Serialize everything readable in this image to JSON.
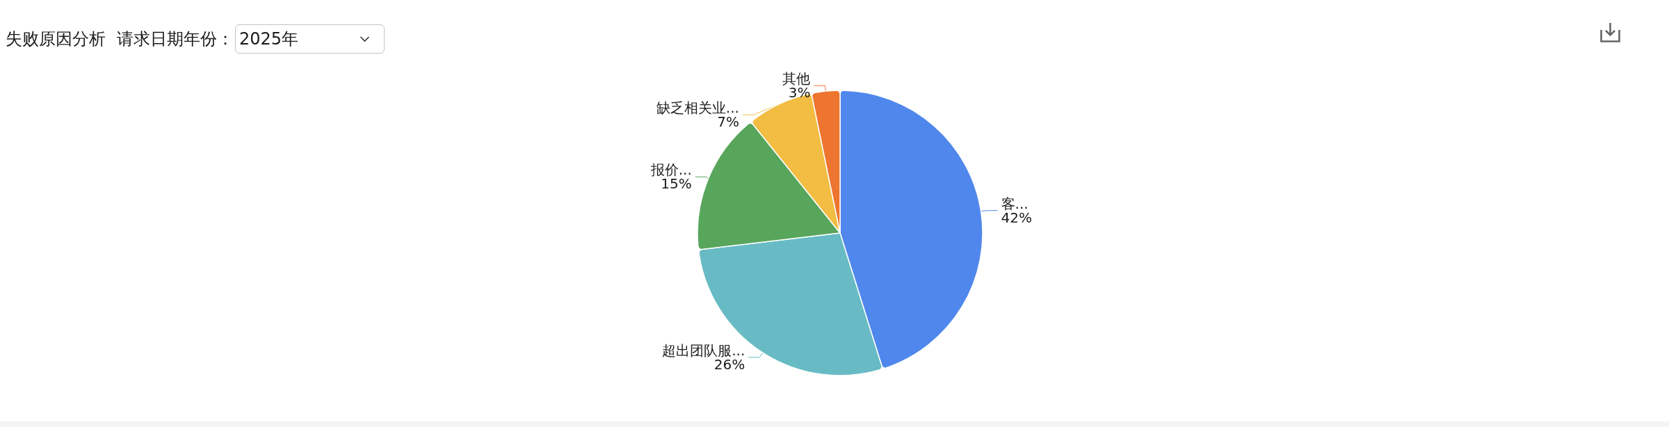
{
  "chart_data": {
    "type": "pie",
    "title": "失败原因分析",
    "annotations": [
      "请求日期年份：",
      "2025年"
    ],
    "categories": [
      "客...",
      "超出团队服...",
      "报价...",
      "缺乏相关业...",
      "其他"
    ],
    "values": [
      42,
      26,
      15,
      7,
      3
    ],
    "colors": [
      "#5087ec",
      "#68bbc4",
      "#58a55c",
      "#f2bd42",
      "#ee752f"
    ],
    "value_labels": [
      "42%",
      "26%",
      "15%",
      "7%",
      "3%"
    ]
  }
}
